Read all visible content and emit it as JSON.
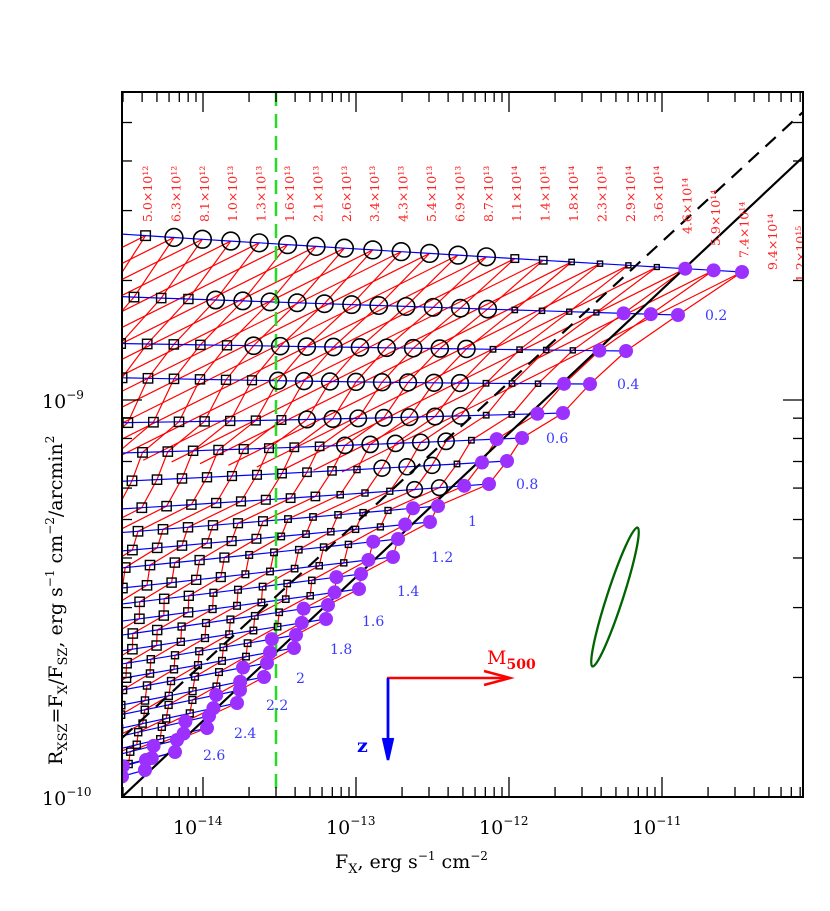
{
  "chart_data": {
    "type": "scatter",
    "title": "",
    "xlabel": "F_X, erg s^-1 cm^-2",
    "ylabel": "R_XSZ = F_X / F_SZ, erg s^-1 cm^-2 / arcmin^2",
    "xscale": "log",
    "yscale": "log",
    "xlim": [
      2.95e-15,
      8.3e-11
    ],
    "ylim": [
      1e-10,
      5.97e-09
    ],
    "x_ticks": [
      {
        "value": 1e-14,
        "base": "10",
        "exp": "−14"
      },
      {
        "value": 1e-13,
        "base": "10",
        "exp": "−13"
      },
      {
        "value": 1e-12,
        "base": "10",
        "exp": "−12"
      },
      {
        "value": 1e-11,
        "base": "10",
        "exp": "−11"
      }
    ],
    "y_ticks": [
      {
        "value": 1e-10,
        "base": "10",
        "exp": "−10"
      },
      {
        "value": 1e-09,
        "base": "10",
        "exp": "−9"
      }
    ],
    "mass_labels": [
      "5.0×10¹²",
      "6.3×10¹²",
      "8.1×10¹²",
      "1.0×10¹³",
      "1.3×10¹³",
      "1.6×10¹³",
      "2.1×10¹³",
      "2.6×10¹³",
      "3.4×10¹³",
      "4.3×10¹³",
      "5.4×10¹³",
      "6.9×10¹³",
      "8.7×10¹³",
      "1.1×10¹⁴",
      "1.4×10¹⁴",
      "1.8×10¹⁴",
      "2.3×10¹⁴",
      "2.9×10¹⁴",
      "3.6×10¹⁴",
      "4.6×10¹⁴",
      "5.9×10¹⁴",
      "7.4×10¹⁴",
      "9.4×10¹⁴",
      "1.2×10¹⁵"
    ],
    "redshift_labels": [
      "0.2",
      "0.4",
      "0.6",
      "0.8",
      "1",
      "1.2",
      "1.4",
      "1.6",
      "1.8",
      "2",
      "2.2",
      "2.4",
      "2.6"
    ],
    "series": [
      {
        "name": "constant-mass tracks",
        "color": "#ff0000",
        "style": "solid"
      },
      {
        "name": "constant-redshift tracks",
        "color": "#0000ff",
        "style": "solid"
      },
      {
        "name": "open circles (extended sources)",
        "color": "#000000",
        "marker": "circle-open"
      },
      {
        "name": "open squares",
        "color": "#000000",
        "marker": "square-open"
      },
      {
        "name": "filled circles",
        "color": "#9b30ff",
        "marker": "circle-filled"
      }
    ],
    "lines": [
      {
        "name": "flux limit",
        "x": 3e-14,
        "color": "#22dd22",
        "style": "dashed",
        "orientation": "vertical"
      },
      {
        "name": "solid diagonal",
        "color": "#000000",
        "style": "solid",
        "from": [
          3e-15,
          1e-10
        ],
        "to": [
          8.3e-11,
          4.6e-09
        ]
      },
      {
        "name": "dashed diagonal",
        "color": "#000000",
        "style": "dashed",
        "from": [
          3e-15,
          1.4e-10
        ],
        "to": [
          8.3e-11,
          5.7e-09
        ]
      }
    ],
    "annotations": [
      {
        "text": "M",
        "sub": "500",
        "color": "#ff0000",
        "type": "arrow-right"
      },
      {
        "text": "z",
        "color": "#0000ff",
        "type": "arrow-down"
      },
      {
        "type": "error-ellipse",
        "color": "#006400"
      }
    ],
    "rows": [
      {
        "z": 0.1,
        "xe": 742,
        "ye": 272,
        "step": 28.4,
        "n": 24,
        "tilt": 0.058
      },
      {
        "z": 0.2,
        "xe": 678,
        "ye": 315,
        "step": 27.2,
        "n": 24,
        "tilt": 0.03
      },
      {
        "z": 0.3,
        "xe": 626,
        "ye": 351,
        "step": 26.6,
        "n": 22,
        "tilt": 0.012
      },
      {
        "z": 0.4,
        "xe": 590,
        "ye": 384,
        "step": 26.0,
        "n": 21,
        "tilt": 0.005
      },
      {
        "z": 0.5,
        "xe": 563,
        "ye": 413,
        "step": 25.6,
        "n": 20,
        "tilt": -0.03
      },
      {
        "z": 0.6,
        "xe": 522,
        "ye": 438,
        "step": 25.3,
        "n": 19,
        "tilt": -0.045
      },
      {
        "z": 0.7,
        "xe": 507,
        "ye": 461,
        "step": 25.0,
        "n": 19,
        "tilt": -0.06
      },
      {
        "z": 0.8,
        "xe": 489,
        "ye": 484,
        "step": 24.8,
        "n": 18,
        "tilt": -0.075
      },
      {
        "z": 0.9,
        "xe": 438,
        "ye": 506,
        "step": 25.0,
        "n": 16,
        "tilt": -0.09
      },
      {
        "z": 1.0,
        "xe": 430,
        "ye": 522,
        "step": 24.8,
        "n": 16,
        "tilt": -0.1
      },
      {
        "z": 1.1,
        "xe": 398,
        "ye": 539,
        "step": 24.8,
        "n": 15,
        "tilt": -0.11
      },
      {
        "z": 1.2,
        "xe": 393,
        "ye": 557,
        "step": 24.6,
        "n": 15,
        "tilt": -0.12
      },
      {
        "z": 1.3,
        "xe": 361,
        "ye": 574,
        "step": 24.6,
        "n": 14,
        "tilt": -0.13
      },
      {
        "z": 1.4,
        "xe": 359,
        "ye": 589,
        "step": 24.4,
        "n": 14,
        "tilt": -0.14
      },
      {
        "z": 1.5,
        "xe": 328,
        "ye": 605,
        "step": 24.4,
        "n": 13,
        "tilt": -0.15
      },
      {
        "z": 1.6,
        "xe": 326,
        "ye": 619,
        "step": 24.2,
        "n": 13,
        "tilt": -0.16
      },
      {
        "z": 1.7,
        "xe": 296,
        "ye": 635,
        "step": 24.2,
        "n": 12,
        "tilt": -0.17
      },
      {
        "z": 1.8,
        "xe": 294,
        "ye": 648,
        "step": 24.0,
        "n": 12,
        "tilt": -0.18
      },
      {
        "z": 1.9,
        "xe": 267,
        "ye": 663,
        "step": 24.0,
        "n": 11,
        "tilt": -0.19
      },
      {
        "z": 2.0,
        "xe": 264,
        "ye": 677,
        "step": 23.8,
        "n": 11,
        "tilt": -0.2
      },
      {
        "z": 2.1,
        "xe": 240,
        "ye": 690,
        "step": 23.8,
        "n": 10,
        "tilt": -0.21
      },
      {
        "z": 2.2,
        "xe": 237,
        "ye": 703,
        "step": 23.6,
        "n": 10,
        "tilt": -0.22
      },
      {
        "z": 2.3,
        "xe": 209,
        "ye": 716,
        "step": 23.6,
        "n": 9,
        "tilt": -0.23
      },
      {
        "z": 2.4,
        "xe": 207,
        "ye": 728,
        "step": 23.4,
        "n": 9,
        "tilt": -0.24
      },
      {
        "z": 2.5,
        "xe": 177,
        "ye": 740,
        "step": 23.4,
        "n": 8,
        "tilt": -0.25
      },
      {
        "z": 2.6,
        "xe": 175,
        "ye": 752,
        "step": 23.2,
        "n": 8,
        "tilt": -0.26
      },
      {
        "z": 2.7,
        "xe": 146,
        "ye": 760,
        "step": 23.2,
        "n": 7,
        "tilt": -0.27
      },
      {
        "z": 2.8,
        "xe": 145,
        "ye": 770,
        "step": 23.0,
        "n": 7,
        "tilt": -0.28
      }
    ]
  },
  "labels": {
    "x_axis_title_main": "F",
    "x_axis_title_sub": "X",
    "x_axis_title_rest": ", erg s",
    "x_axis_title_sup1": "−1",
    "x_axis_title_rest2": " cm",
    "x_axis_title_sup2": "−2",
    "y_axis_title_R": "R",
    "y_axis_title_Rsub": "XSZ",
    "y_axis_title_eq": "=F",
    "y_axis_title_Fsub": "X",
    "y_axis_title_slash": "/F",
    "y_axis_title_Ssub": "SZ",
    "y_axis_title_rest": ",  erg s",
    "y_axis_title_sup1": "−1",
    "y_axis_title_rest2": " cm",
    "y_axis_title_sup2": "−2",
    "y_axis_title_rest3": "/arcmin",
    "y_axis_title_sup3": "2",
    "m500_main": "M",
    "m500_sub": "500",
    "z_arrow_label": "z"
  }
}
